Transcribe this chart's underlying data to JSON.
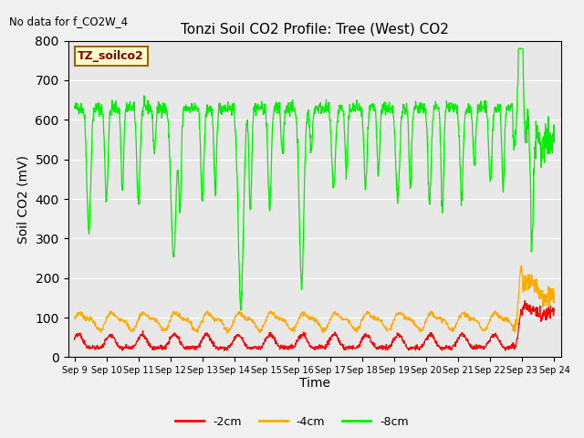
{
  "title": "Tonzi Soil CO2 Profile: Tree (West) CO2",
  "no_data_text": "No data for f_CO2W_4",
  "legend_box_text": "TZ_soilco2",
  "ylabel": "Soil CO2 (mV)",
  "xlabel": "Time",
  "ylim": [
    0,
    800
  ],
  "color_red": "#ff0000",
  "color_orange": "#ffaa00",
  "color_green": "#00ee00",
  "color_bg": "#e8e8e8",
  "line_label_2cm": "-2cm",
  "line_label_4cm": "-4cm",
  "line_label_8cm": "-8cm",
  "xtick_labels": [
    "Sep 9",
    "Sep 10",
    "Sep 11",
    "Sep 12",
    "Sep 13",
    "Sep 14",
    "Sep 15",
    "Sep 16",
    "Sep 17",
    "Sep 18",
    "Sep 19",
    "Sep 20",
    "Sep 21",
    "Sep 22",
    "Sep 23",
    "Sep 24"
  ]
}
